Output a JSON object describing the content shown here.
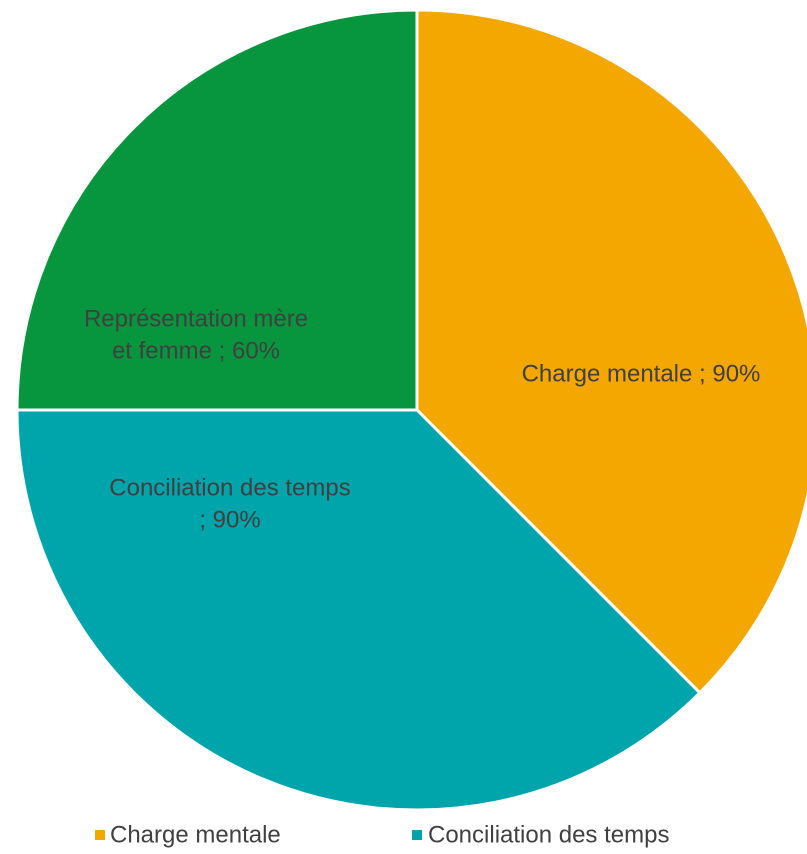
{
  "chart_data": {
    "type": "pie",
    "title": "",
    "slices": [
      {
        "name": "Charge mentale",
        "value": 90,
        "label": "Charge mentale ; 90%",
        "label_lines": [
          "Charge mentale ; 90%"
        ],
        "color": "#F4A700"
      },
      {
        "name": "Conciliation des temps",
        "value": 90,
        "label": "Conciliation des temps ; 90%",
        "label_lines": [
          "Conciliation des temps",
          "; 90%"
        ],
        "color": "#00A5AC"
      },
      {
        "name": "Représentation mère et femme",
        "value": 60,
        "label": "Représentation mère et femme ; 60%",
        "label_lines": [
          "Représentation mère",
          "et femme ; 60%"
        ],
        "color": "#07963E"
      }
    ],
    "legend": {
      "position": "bottom",
      "entries": [
        {
          "name": "Charge mentale",
          "color": "#F4A700"
        },
        {
          "name": "Conciliation des temps",
          "color": "#00A5AC"
        }
      ]
    }
  }
}
